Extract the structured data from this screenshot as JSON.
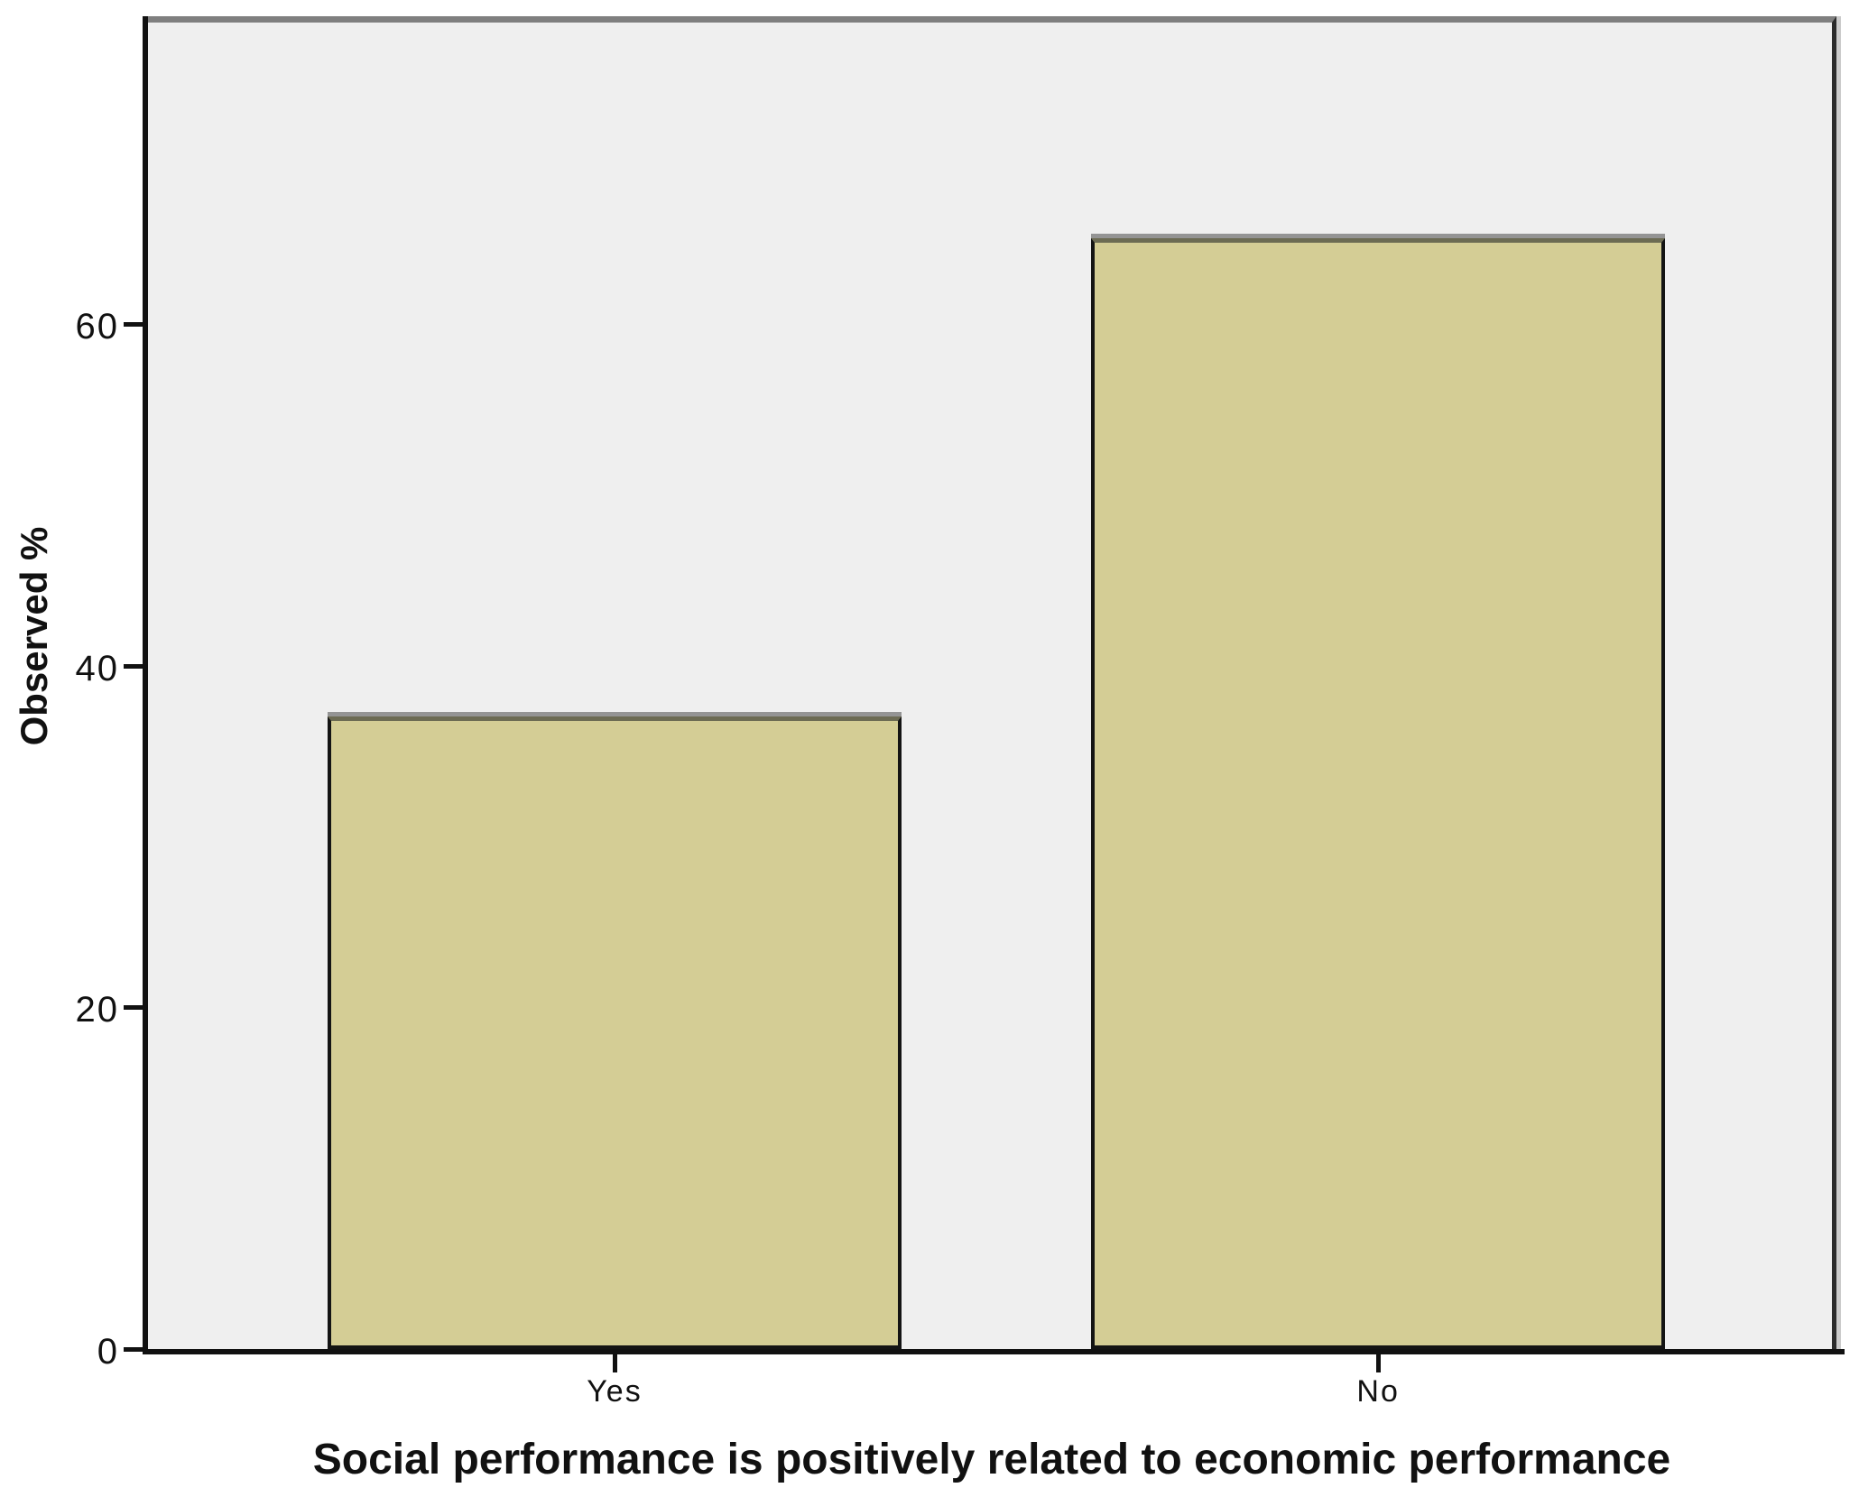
{
  "chart_data": {
    "type": "bar",
    "title": "",
    "categories": [
      "Yes",
      "No"
    ],
    "values": [
      37,
      65
    ],
    "xlabel": "Social performance is positively related to economic performance",
    "ylabel": "Observed %",
    "ylim": [
      0,
      78
    ],
    "yticks": [
      0,
      20,
      40,
      60
    ],
    "grid": false,
    "legend_position": "none",
    "colors": {
      "bar_fill": "#d4cd95",
      "bar_border": "#141414",
      "bar_top_border": "#6c6b53",
      "bar_shadow": "#949494",
      "plot_background": "#efefef",
      "frame_top": "#7f7f7f",
      "frame_right": "#2b2b2b",
      "frame_shadow": "#cbcbcb",
      "axis_line": "#111111",
      "page_background": "#ffffff",
      "text": "#111111"
    }
  }
}
